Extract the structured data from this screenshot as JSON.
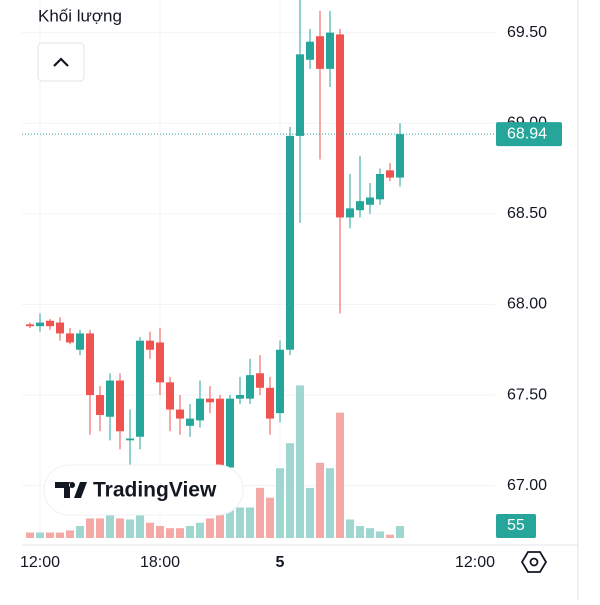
{
  "chart_data": {
    "type": "candlestick",
    "volume_label": "Khối lượng",
    "watermark": "TradingView",
    "up_color": "#26a69a",
    "down_color": "#ef5350",
    "up_volume_color": "#9fd6d0",
    "down_volume_color": "#f5a9a7",
    "x": [
      11.5,
      12,
      12.5,
      13,
      13.5,
      14,
      14.5,
      15,
      15.5,
      16,
      16.5,
      17,
      17.5,
      18,
      18.5,
      19,
      19.5,
      20,
      20.5,
      21,
      21.5,
      22,
      22.5,
      23,
      23.5,
      24,
      24.5,
      25,
      25.5,
      26,
      26.5,
      27,
      27.5,
      28,
      28.5,
      29,
      29.5,
      30
    ],
    "open": [
      67.89,
      67.88,
      67.91,
      67.9,
      67.84,
      67.75,
      67.84,
      67.5,
      67.38,
      67.58,
      67.25,
      67.27,
      67.8,
      67.79,
      67.57,
      67.42,
      67.33,
      67.36,
      67.48,
      67.48,
      67.1,
      67.48,
      67.48,
      67.62,
      67.54,
      67.4,
      67.75,
      68.93,
      69.35,
      69.48,
      69.3,
      69.49,
      68.48,
      68.52,
      68.55,
      68.58,
      68.74,
      68.7
    ],
    "high": [
      67.9,
      67.95,
      67.92,
      67.93,
      67.87,
      67.86,
      67.86,
      67.55,
      67.62,
      67.62,
      67.42,
      67.82,
      67.85,
      67.87,
      67.6,
      67.5,
      67.45,
      67.58,
      67.55,
      67.5,
      67.5,
      67.6,
      67.7,
      67.72,
      67.6,
      67.8,
      68.98,
      69.68,
      69.52,
      69.62,
      69.62,
      69.52,
      68.72,
      68.82,
      68.67,
      68.75,
      68.78,
      69.0
    ],
    "low": [
      67.87,
      67.85,
      67.86,
      67.8,
      67.78,
      67.72,
      67.28,
      67.3,
      67.25,
      67.2,
      67.1,
      67.2,
      67.7,
      67.5,
      67.3,
      67.28,
      67.27,
      67.32,
      67.4,
      67.05,
      67.05,
      67.45,
      67.45,
      67.5,
      67.28,
      67.35,
      67.72,
      68.45,
      69.3,
      68.8,
      69.2,
      67.95,
      68.42,
      68.48,
      68.5,
      68.55,
      68.68,
      68.65
    ],
    "close": [
      67.88,
      67.9,
      67.88,
      67.84,
      67.79,
      67.84,
      67.5,
      67.39,
      67.58,
      67.3,
      67.26,
      67.8,
      67.75,
      67.57,
      67.42,
      67.37,
      67.37,
      67.48,
      67.46,
      67.08,
      67.48,
      67.5,
      67.61,
      67.54,
      67.37,
      67.75,
      68.93,
      69.38,
      69.45,
      69.3,
      69.5,
      68.48,
      68.53,
      68.57,
      68.59,
      68.72,
      68.7,
      68.94
    ],
    "volume": [
      25,
      25,
      25,
      25,
      35,
      55,
      90,
      90,
      140,
      90,
      85,
      140,
      70,
      55,
      45,
      45,
      55,
      70,
      90,
      115,
      160,
      140,
      140,
      230,
      185,
      320,
      435,
      700,
      230,
      345,
      320,
      575,
      85,
      55,
      45,
      30,
      15,
      55
    ],
    "ylim": [
      66.7,
      69.68
    ],
    "vlim": [
      0,
      1000
    ],
    "xlim": [
      11.1,
      34.75
    ],
    "yticks": [
      {
        "value": 67,
        "label": "67.00"
      },
      {
        "value": 67.5,
        "label": "67.50"
      },
      {
        "value": 68,
        "label": "68.00"
      },
      {
        "value": 68.5,
        "label": "68.50"
      },
      {
        "value": 69,
        "label": "69.00"
      },
      {
        "value": 69.5,
        "label": "69.50"
      }
    ],
    "xticks": [
      {
        "value": 12,
        "label": "12:00"
      },
      {
        "value": 18,
        "label": "18:00"
      },
      {
        "value": 24,
        "label": "5"
      },
      {
        "value": 36,
        "label": "12:00"
      }
    ],
    "grid": true
  }
}
